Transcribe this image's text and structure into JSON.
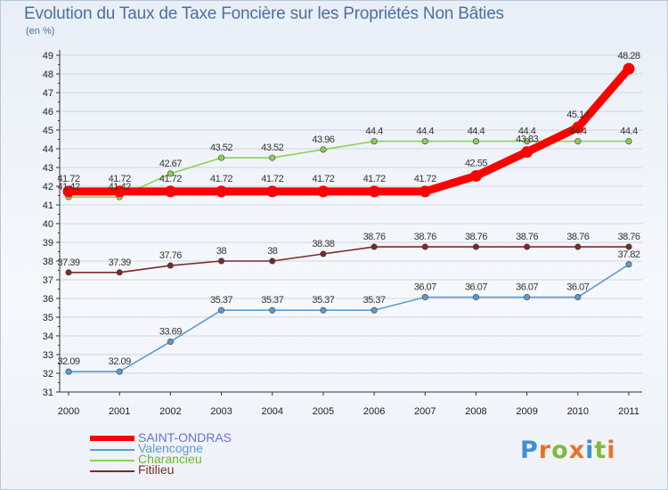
{
  "title": "Evolution du Taux de Taxe Foncière sur les Propriétés Non Bâties",
  "unit_label": "(en %)",
  "logo": {
    "letters": [
      {
        "ch": "P",
        "color": "#3f8fd4"
      },
      {
        "ch": "r",
        "color": "#e8742a"
      },
      {
        "ch": "o",
        "color": "#84b83c"
      },
      {
        "ch": "x",
        "color": "#e8742a"
      },
      {
        "ch": "i",
        "color": "#3f8fd4"
      },
      {
        "ch": "t",
        "color": "#84b83c"
      },
      {
        "ch": "i",
        "color": "#e8742a"
      }
    ]
  },
  "colors": {
    "axis_text": "#222222",
    "grid": "#cfd6e0",
    "axis_line": "#333333"
  },
  "chart_data": {
    "type": "line",
    "title": "Evolution du Taux de Taxe Foncière sur les Propriétés Non Bâties",
    "ylabel": "(en %)",
    "xlabel": "",
    "categories": [
      "2000",
      "2001",
      "2002",
      "2003",
      "2004",
      "2005",
      "2006",
      "2007",
      "2008",
      "2009",
      "2010",
      "2011"
    ],
    "ylim": [
      31,
      49
    ],
    "yticks": [
      31,
      32,
      33,
      34,
      35,
      36,
      37,
      38,
      39,
      40,
      41,
      42,
      43,
      44,
      45,
      46,
      47,
      48,
      49
    ],
    "grid": true,
    "legend_position": "bottom-left",
    "series": [
      {
        "name": "SAINT-ONDRAS",
        "color": "#ff0000",
        "legend_text_color": "#6a72d0",
        "thick": true,
        "values": [
          41.72,
          41.72,
          41.72,
          41.72,
          41.72,
          41.72,
          41.72,
          41.72,
          42.55,
          43.83,
          45.14,
          48.28
        ],
        "labels": [
          "41.72",
          "41.72",
          "41.72",
          "41.72",
          "41.72",
          "41.72",
          "41.72",
          "41.72",
          "42.55",
          "43.83",
          "45.14",
          "48.28"
        ]
      },
      {
        "name": "Valencogne",
        "color": "#5b9bd5",
        "legend_text_color": "#5b9bd5",
        "thick": false,
        "values": [
          32.09,
          32.09,
          33.69,
          35.37,
          35.37,
          35.37,
          35.37,
          36.07,
          36.07,
          36.07,
          36.07,
          37.82
        ],
        "labels": [
          "32.09",
          "32.09",
          "33.69",
          "35.37",
          "35.37",
          "35.37",
          "35.37",
          "36.07",
          "36.07",
          "36.07",
          "36.07",
          "37.82"
        ]
      },
      {
        "name": "Charancieu",
        "color": "#8fd14f",
        "legend_text_color": "#6fb52f",
        "thick": false,
        "values": [
          41.42,
          41.42,
          42.67,
          43.52,
          43.52,
          43.96,
          44.4,
          44.4,
          44.4,
          44.4,
          44.4,
          44.4
        ],
        "labels": [
          "41.42",
          "41.42",
          "42.67",
          "43.52",
          "43.52",
          "43.96",
          "44.4",
          "44.4",
          "44.4",
          "44.4",
          "44.4",
          "44.4"
        ]
      },
      {
        "name": "Fitilieu",
        "color": "#7b2a2a",
        "legend_text_color": "#7b2a2a",
        "thick": false,
        "values": [
          37.39,
          37.39,
          37.76,
          38,
          38,
          38.38,
          38.76,
          38.76,
          38.76,
          38.76,
          38.76,
          38.76
        ],
        "labels": [
          "37.39",
          "37.39",
          "37.76",
          "38",
          "38",
          "38.38",
          "38.76",
          "38.76",
          "38.76",
          "38.76",
          "38.76",
          "38.76"
        ]
      }
    ]
  }
}
